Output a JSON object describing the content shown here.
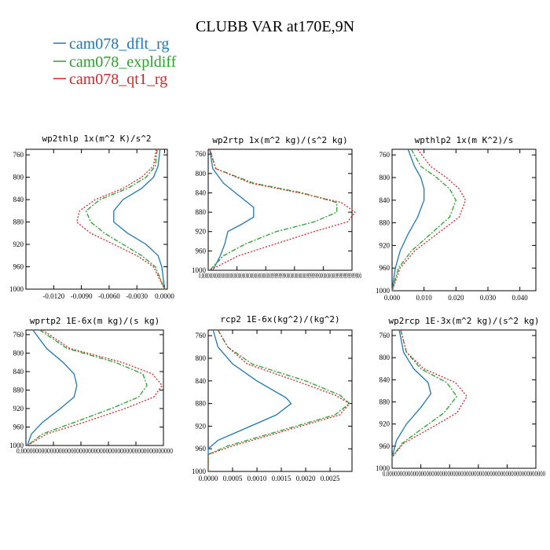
{
  "figure": {
    "title": "CLUBB VAR at170E,9N",
    "legend": [
      {
        "label": "cam078_dflt_rg",
        "color": "#1f77b4",
        "dash": "solid"
      },
      {
        "label": "cam078_expldiff",
        "color": "#2ca02c",
        "dash": "dashdot"
      },
      {
        "label": "cam078_qt1_rg",
        "color": "#d62728",
        "dash": "dotted"
      }
    ]
  },
  "chart_data": [
    {
      "type": "line",
      "title": "wp2thlp   1x(m^2 K)/s^2",
      "xlim": [
        -0.015,
        0.0003
      ],
      "ylim": [
        1000,
        750
      ],
      "xticks": [
        "-0.0120",
        "-0.0090",
        "-0.0060",
        "-0.0030",
        "0.0000"
      ],
      "xtick_values": [
        -0.012,
        -0.009,
        -0.006,
        -0.003,
        0.0
      ],
      "yticks": [
        760,
        800,
        840,
        880,
        920,
        960,
        1000
      ],
      "series": [
        {
          "name": "cam078_dflt_rg",
          "x": [
            -0.0005,
            -0.0007,
            -0.0012,
            -0.0025,
            -0.0045,
            -0.0055,
            -0.0055,
            -0.004,
            -0.002,
            -0.0007,
            -0.0003,
            0.0
          ],
          "y": [
            750,
            780,
            800,
            820,
            840,
            860,
            880,
            900,
            920,
            940,
            960,
            1000
          ]
        },
        {
          "name": "cam078_expldiff",
          "x": [
            -0.0008,
            -0.001,
            -0.002,
            -0.004,
            -0.007,
            -0.0085,
            -0.008,
            -0.0065,
            -0.0045,
            -0.0025,
            -0.001,
            0.0
          ],
          "y": [
            750,
            780,
            800,
            820,
            840,
            860,
            880,
            900,
            920,
            940,
            960,
            1000
          ]
        },
        {
          "name": "cam078_qt1_rg",
          "x": [
            -0.0009,
            -0.0012,
            -0.0025,
            -0.0045,
            -0.0075,
            -0.0092,
            -0.0095,
            -0.008,
            -0.0055,
            -0.003,
            -0.0012,
            0.0
          ],
          "y": [
            750,
            780,
            800,
            820,
            840,
            860,
            880,
            900,
            920,
            940,
            960,
            1000
          ]
        }
      ]
    },
    {
      "type": "line",
      "title": "wp2rtp   1x(m^2 kg)/(s^2 kg)",
      "xlim": [
        0,
        0.95
      ],
      "ylim": [
        1000,
        750
      ],
      "xticks": [
        "0.0000000000000000000000000000000000009999999000000000009999990000000009999999999900"
      ],
      "xtick_values": [
        0.0
      ],
      "yticks": [
        760,
        800,
        840,
        880,
        920,
        960,
        1000
      ],
      "series": [
        {
          "name": "cam078_dflt_rg",
          "x": [
            0.01,
            0.03,
            0.1,
            0.22,
            0.3,
            0.3,
            0.22,
            0.13,
            0.11,
            0.08,
            0.03
          ],
          "y": [
            750,
            790,
            820,
            850,
            870,
            890,
            905,
            920,
            945,
            970,
            1000
          ]
        },
        {
          "name": "cam078_expldiff",
          "x": [
            0.01,
            0.05,
            0.3,
            0.62,
            0.85,
            0.85,
            0.7,
            0.45,
            0.25,
            0.1,
            0.01
          ],
          "y": [
            750,
            790,
            820,
            840,
            860,
            880,
            900,
            920,
            945,
            970,
            1000
          ]
        },
        {
          "name": "cam078_qt1_rg",
          "x": [
            0.01,
            0.05,
            0.28,
            0.6,
            0.88,
            0.97,
            0.92,
            0.7,
            0.45,
            0.2,
            0.01
          ],
          "y": [
            750,
            790,
            820,
            840,
            860,
            880,
            900,
            920,
            945,
            970,
            1000
          ]
        }
      ]
    },
    {
      "type": "line",
      "title": "wpthlp2   1x(m K^2)/s",
      "xlim": [
        0,
        0.045
      ],
      "ylim": [
        1000,
        750
      ],
      "xticks": [
        "0.000",
        "0.010",
        "0.020",
        "0.030",
        "0.040"
      ],
      "xtick_values": [
        0.0,
        0.01,
        0.02,
        0.03,
        0.04
      ],
      "yticks": [
        760,
        800,
        840,
        880,
        920,
        960,
        1000
      ],
      "series": [
        {
          "name": "cam078_dflt_rg",
          "x": [
            0.005,
            0.007,
            0.009,
            0.01,
            0.01,
            0.008,
            0.005,
            0.0025,
            0.001,
            0.0
          ],
          "y": [
            750,
            780,
            800,
            820,
            840,
            870,
            900,
            930,
            960,
            1000
          ]
        },
        {
          "name": "cam078_expldiff",
          "x": [
            0.006,
            0.009,
            0.014,
            0.018,
            0.02,
            0.018,
            0.012,
            0.006,
            0.002,
            0.0
          ],
          "y": [
            750,
            780,
            800,
            820,
            840,
            870,
            900,
            930,
            960,
            1000
          ]
        },
        {
          "name": "cam078_qt1_rg",
          "x": [
            0.008,
            0.012,
            0.017,
            0.021,
            0.023,
            0.021,
            0.014,
            0.007,
            0.0025,
            0.0
          ],
          "y": [
            750,
            780,
            800,
            820,
            840,
            870,
            900,
            930,
            960,
            1000
          ]
        }
      ]
    },
    {
      "type": "line",
      "title": "wprtp2   1E-6x(m kg)/(s kg)",
      "xlim": [
        0,
        1.0
      ],
      "ylim": [
        1000,
        750
      ],
      "xticks": [
        "0.0000000000000000000000000000000000000000000000000000"
      ],
      "xtick_values": [
        0.0
      ],
      "yticks": [
        760,
        800,
        840,
        880,
        920,
        960,
        1000
      ],
      "series": [
        {
          "name": "cam078_dflt_rg",
          "x": [
            0.05,
            0.15,
            0.27,
            0.35,
            0.37,
            0.35,
            0.25,
            0.12,
            0.04,
            0.01
          ],
          "y": [
            750,
            790,
            820,
            845,
            870,
            895,
            920,
            950,
            975,
            1000
          ]
        },
        {
          "name": "cam078_expldiff",
          "x": [
            0.1,
            0.3,
            0.65,
            0.85,
            0.88,
            0.82,
            0.62,
            0.35,
            0.12,
            0.01
          ],
          "y": [
            750,
            790,
            820,
            845,
            870,
            895,
            920,
            950,
            975,
            1000
          ]
        },
        {
          "name": "cam078_qt1_rg",
          "x": [
            0.12,
            0.32,
            0.7,
            0.92,
            0.99,
            0.93,
            0.72,
            0.42,
            0.15,
            0.01
          ],
          "y": [
            750,
            790,
            820,
            845,
            870,
            895,
            920,
            950,
            975,
            1000
          ]
        }
      ]
    },
    {
      "type": "line",
      "title": "rcp2   1E-6x(kg^2)/(kg^2)",
      "xlim": [
        0,
        0.00295
      ],
      "ylim": [
        1000,
        750
      ],
      "xticks": [
        "0.0000",
        "0.0005",
        "0.0010",
        "0.0015",
        "0.0020",
        "0.0025"
      ],
      "xtick_values": [
        0.0,
        0.0005,
        0.001,
        0.0015,
        0.002,
        0.0025
      ],
      "yticks": [
        760,
        800,
        840,
        880,
        920,
        960,
        1000
      ],
      "series": [
        {
          "name": "cam078_dflt_rg",
          "x": [
            0.0001,
            0.0002,
            0.0005,
            0.001,
            0.0016,
            0.0017,
            0.0014,
            0.0006,
            0.0002,
            0.0,
            0.0
          ],
          "y": [
            750,
            780,
            810,
            840,
            870,
            880,
            900,
            930,
            945,
            960,
            1000
          ]
        },
        {
          "name": "cam078_expldiff",
          "x": [
            0.0002,
            0.0004,
            0.0009,
            0.002,
            0.0027,
            0.0029,
            0.0026,
            0.0014,
            0.0004,
            0.0,
            0.0
          ],
          "y": [
            750,
            780,
            810,
            840,
            865,
            880,
            900,
            930,
            955,
            970,
            1000
          ]
        },
        {
          "name": "cam078_qt1_rg",
          "x": [
            0.0002,
            0.0004,
            0.0008,
            0.0018,
            0.0026,
            0.0029,
            0.0027,
            0.0015,
            0.0005,
            0.0,
            0.0
          ],
          "y": [
            750,
            780,
            810,
            840,
            865,
            880,
            900,
            930,
            955,
            970,
            1000
          ]
        }
      ]
    },
    {
      "type": "line",
      "title": "wp2rcp   1E-3x(m^2 kg)/(s^2 kg)",
      "xlim": [
        0,
        1.0
      ],
      "ylim": [
        1000,
        750
      ],
      "xticks": [
        "0.000000000000000000000000000000000000000000000000000000000000"
      ],
      "xtick_values": [
        0.0
      ],
      "yticks": [
        760,
        800,
        840,
        880,
        920,
        960,
        1000
      ],
      "series": [
        {
          "name": "cam078_dflt_rg",
          "x": [
            0.05,
            0.08,
            0.15,
            0.25,
            0.27,
            0.2,
            0.1,
            0.03,
            0.0
          ],
          "y": [
            750,
            790,
            820,
            845,
            865,
            890,
            920,
            950,
            980
          ]
        },
        {
          "name": "cam078_expldiff",
          "x": [
            0.06,
            0.1,
            0.2,
            0.38,
            0.45,
            0.36,
            0.2,
            0.07,
            0.0
          ],
          "y": [
            750,
            790,
            820,
            845,
            870,
            900,
            930,
            955,
            980
          ]
        },
        {
          "name": "cam078_qt1_rg",
          "x": [
            0.06,
            0.1,
            0.22,
            0.44,
            0.52,
            0.45,
            0.25,
            0.08,
            0.0
          ],
          "y": [
            750,
            790,
            820,
            845,
            870,
            900,
            930,
            955,
            980
          ]
        }
      ]
    }
  ]
}
